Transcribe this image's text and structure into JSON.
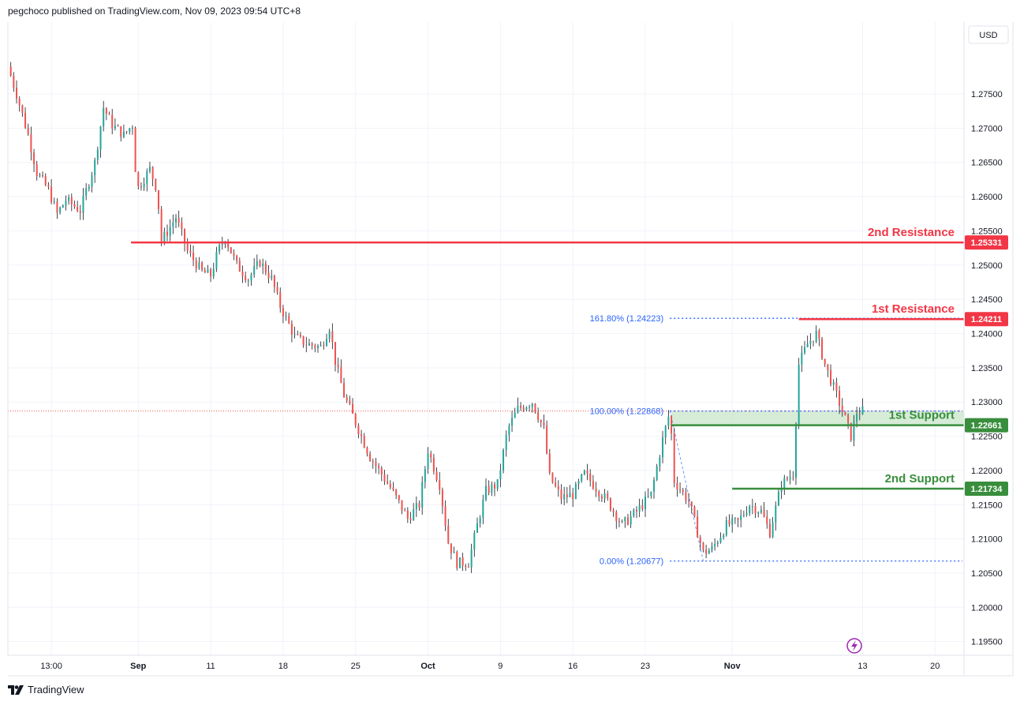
{
  "header": {
    "published": "pegchoco published on TradingView.com, Nov 09, 2023 09:54 UTC+8"
  },
  "brand": {
    "name": "TradingView",
    "icon": "tradingview-logo-icon"
  },
  "colors": {
    "up": "#26a69a",
    "down": "#ef5350",
    "resistance": "#f23645",
    "support": "#388e3c",
    "fib": "#2962ff",
    "zone": "#c8e6c9",
    "grid": "#f0f3fa",
    "axis_text": "#131722"
  },
  "chart_data": {
    "type": "candlestick",
    "currency": "USD",
    "y_range": [
      1.193,
      1.2855
    ],
    "y_ticks": [
      "1.27500",
      "1.27000",
      "1.26500",
      "1.26000",
      "1.25500",
      "1.25000",
      "1.24500",
      "1.24000",
      "1.23500",
      "1.23000",
      "1.22500",
      "1.22000",
      "1.21500",
      "1.21000",
      "1.20500",
      "1.20000",
      "1.19500"
    ],
    "x_ticks": [
      {
        "label": "13:00",
        "pos": 0.0
      },
      {
        "label": "Sep",
        "pos": 6.0
      },
      {
        "label": "11",
        "pos": 11.0
      },
      {
        "label": "18",
        "pos": 16.0
      },
      {
        "label": "25",
        "pos": 21.0
      },
      {
        "label": "Oct",
        "pos": 26.0
      },
      {
        "label": "9",
        "pos": 31.0
      },
      {
        "label": "16",
        "pos": 36.0
      },
      {
        "label": "23",
        "pos": 41.0
      },
      {
        "label": "Nov",
        "pos": 47.0
      },
      {
        "label": "13",
        "pos": 56.0
      },
      {
        "label": "20",
        "pos": 61.0
      }
    ],
    "x_range": [
      -3.0,
      63.0
    ],
    "last_price": 1.22868,
    "levels": [
      {
        "name": "2nd Resistance",
        "value": 1.25331,
        "badge": "1.25331",
        "kind": "resistance",
        "from": 5.5
      },
      {
        "name": "1st Resistance",
        "value": 1.24211,
        "badge": "1.24211",
        "kind": "resistance",
        "from": 51.6
      },
      {
        "name": "1st Support",
        "value": 1.22661,
        "badge": "1.22661",
        "kind": "support",
        "from": 42.8
      },
      {
        "name": "2nd Support",
        "value": 1.21734,
        "badge": "1.21734",
        "kind": "support",
        "from": 47.0
      }
    ],
    "support_zone": {
      "from": 42.8,
      "top": 1.22868,
      "bottom": 1.22661
    },
    "fib_levels": [
      {
        "label": "161.80% (1.24223)",
        "value": 1.24223
      },
      {
        "label": "100.00% (1.22868)",
        "value": 1.22868
      },
      {
        "label": "0.00% (1.20677)",
        "value": 1.20677
      }
    ],
    "fib_from": 42.7,
    "path": [
      {
        "t": -3.0,
        "p": 1.279
      },
      {
        "t": -2.4,
        "p": 1.275
      },
      {
        "t": -1.6,
        "p": 1.269
      },
      {
        "t": -1.0,
        "p": 1.2635
      },
      {
        "t": -0.2,
        "p": 1.261
      },
      {
        "t": 0.4,
        "p": 1.2575
      },
      {
        "t": 1.0,
        "p": 1.2595
      },
      {
        "t": 2.0,
        "p": 1.258
      },
      {
        "t": 3.0,
        "p": 1.265
      },
      {
        "t": 3.6,
        "p": 1.273
      },
      {
        "t": 4.2,
        "p": 1.2705
      },
      {
        "t": 5.0,
        "p": 1.269
      },
      {
        "t": 5.6,
        "p": 1.2705
      },
      {
        "t": 5.9,
        "p": 1.261
      },
      {
        "t": 6.8,
        "p": 1.264
      },
      {
        "t": 7.3,
        "p": 1.261
      },
      {
        "t": 7.6,
        "p": 1.2535
      },
      {
        "t": 8.6,
        "p": 1.257
      },
      {
        "t": 9.4,
        "p": 1.252
      },
      {
        "t": 10.4,
        "p": 1.249
      },
      {
        "t": 11.0,
        "p": 1.2485
      },
      {
        "t": 11.5,
        "p": 1.252
      },
      {
        "t": 12.0,
        "p": 1.254
      },
      {
        "t": 12.8,
        "p": 1.25
      },
      {
        "t": 13.6,
        "p": 1.248
      },
      {
        "t": 14.4,
        "p": 1.2505
      },
      {
        "t": 15.2,
        "p": 1.248
      },
      {
        "t": 15.8,
        "p": 1.244
      },
      {
        "t": 16.8,
        "p": 1.2395
      },
      {
        "t": 17.6,
        "p": 1.2385
      },
      {
        "t": 18.6,
        "p": 1.238
      },
      {
        "t": 19.2,
        "p": 1.241
      },
      {
        "t": 19.6,
        "p": 1.236
      },
      {
        "t": 20.2,
        "p": 1.231
      },
      {
        "t": 21.0,
        "p": 1.227
      },
      {
        "t": 22.0,
        "p": 1.222
      },
      {
        "t": 23.4,
        "p": 1.2175
      },
      {
        "t": 24.6,
        "p": 1.213
      },
      {
        "t": 25.4,
        "p": 1.215
      },
      {
        "t": 26.0,
        "p": 1.223
      },
      {
        "t": 26.8,
        "p": 1.218
      },
      {
        "t": 27.4,
        "p": 1.2095
      },
      {
        "t": 28.0,
        "p": 1.2065
      },
      {
        "t": 28.8,
        "p": 1.2065
      },
      {
        "t": 29.4,
        "p": 1.212
      },
      {
        "t": 30.0,
        "p": 1.217
      },
      {
        "t": 30.8,
        "p": 1.218
      },
      {
        "t": 31.5,
        "p": 1.226
      },
      {
        "t": 32.2,
        "p": 1.229
      },
      {
        "t": 33.2,
        "p": 1.23
      },
      {
        "t": 34.0,
        "p": 1.226
      },
      {
        "t": 34.4,
        "p": 1.219
      },
      {
        "t": 35.2,
        "p": 1.216
      },
      {
        "t": 36.0,
        "p": 1.2165
      },
      {
        "t": 36.8,
        "p": 1.2195
      },
      {
        "t": 37.6,
        "p": 1.2175
      },
      {
        "t": 38.4,
        "p": 1.2155
      },
      {
        "t": 39.4,
        "p": 1.212
      },
      {
        "t": 40.4,
        "p": 1.214
      },
      {
        "t": 41.4,
        "p": 1.2165
      },
      {
        "t": 42.2,
        "p": 1.2245
      },
      {
        "t": 42.7,
        "p": 1.2287
      },
      {
        "t": 43.0,
        "p": 1.2185
      },
      {
        "t": 44.0,
        "p": 1.2155
      },
      {
        "t": 45.0,
        "p": 1.208
      },
      {
        "t": 45.6,
        "p": 1.2085
      },
      {
        "t": 46.6,
        "p": 1.212
      },
      {
        "t": 47.4,
        "p": 1.2125
      },
      {
        "t": 48.2,
        "p": 1.215
      },
      {
        "t": 49.0,
        "p": 1.214
      },
      {
        "t": 49.6,
        "p": 1.211
      },
      {
        "t": 50.4,
        "p": 1.218
      },
      {
        "t": 51.2,
        "p": 1.2195
      },
      {
        "t": 51.6,
        "p": 1.2355
      },
      {
        "t": 52.2,
        "p": 1.2385
      },
      {
        "t": 52.8,
        "p": 1.24
      },
      {
        "t": 53.4,
        "p": 1.2355
      },
      {
        "t": 54.2,
        "p": 1.231
      },
      {
        "t": 54.8,
        "p": 1.2275
      },
      {
        "t": 55.2,
        "p": 1.225
      },
      {
        "t": 55.6,
        "p": 1.2285
      },
      {
        "t": 56.0,
        "p": 1.2287
      }
    ]
  }
}
